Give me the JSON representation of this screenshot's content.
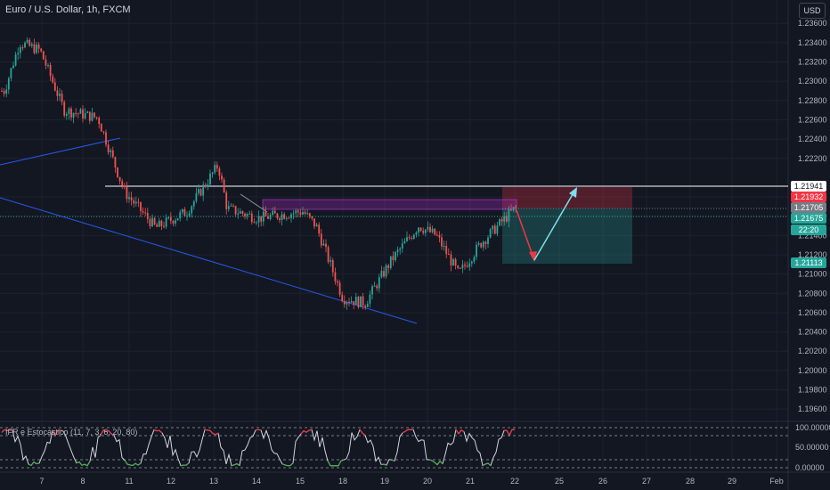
{
  "header": {
    "symbol_title": "Euro / U.S. Dollar, 1h, FXCM",
    "currency_button": "USD",
    "indicator_label": "IFR e Estocástico (11, 7, 3, 6, 20, 80)"
  },
  "price_axis": {
    "ticks": [
      "1.23600",
      "1.23400",
      "1.23200",
      "1.23000",
      "1.22800",
      "1.22600",
      "1.22400",
      "1.22200",
      "1.21800",
      "1.21600",
      "1.21400",
      "1.21200",
      "1.21000",
      "1.20800",
      "1.20600",
      "1.20400",
      "1.20200",
      "1.20000",
      "1.19800",
      "1.19600"
    ],
    "tags": [
      {
        "label": "1.21941",
        "bg": "#ffffff",
        "fg": "#131722"
      },
      {
        "label": "1.21932",
        "bg": "#f23645",
        "fg": "#ffffff"
      },
      {
        "label": "1.21705",
        "bg": "#787b86",
        "fg": "#ffffff"
      },
      {
        "label": "1.21675",
        "bg": "#26a69a",
        "fg": "#ffffff"
      },
      {
        "label": "22:20",
        "bg": "#26a69a",
        "fg": "#ffffff"
      },
      {
        "label": "1.21113",
        "bg": "#26a69a",
        "fg": "#ffffff"
      }
    ]
  },
  "indicator_axis": {
    "ticks": [
      "100.00000",
      "50.00000",
      "0.00000"
    ]
  },
  "time_axis": {
    "labels": [
      "7",
      "8",
      "11",
      "12",
      "13",
      "14",
      "15",
      "18",
      "19",
      "20",
      "21",
      "22",
      "25",
      "26",
      "27",
      "28",
      "29",
      "Feb"
    ]
  },
  "chart_data": {
    "type": "candlestick",
    "instrument": "Euro / U.S. Dollar",
    "interval": "1h",
    "source": "FXCM",
    "ylim": [
      1.195,
      1.2375
    ],
    "levels": {
      "horizontal_line": 1.21941,
      "stop_zone": [
        1.217,
        1.2195
      ],
      "target_zone": [
        1.211,
        1.217
      ],
      "supply_zone": [
        1.2171,
        1.2179
      ]
    },
    "last_price": 1.21675,
    "countdown": "22:20",
    "anchor_path": [
      [
        "7",
        1.229
      ],
      [
        "7",
        1.234
      ],
      [
        "7",
        1.2332
      ],
      [
        "8",
        1.227
      ],
      [
        "8",
        1.2262
      ],
      [
        "11",
        1.2185
      ],
      [
        "11",
        1.2148
      ],
      [
        "12",
        1.2165
      ],
      [
        "13",
        1.2213
      ],
      [
        "13",
        1.2168
      ],
      [
        "14",
        1.2158
      ],
      [
        "15",
        1.2165
      ],
      [
        "15",
        1.215
      ],
      [
        "18",
        1.2075
      ],
      [
        "18",
        1.207
      ],
      [
        "19",
        1.2115
      ],
      [
        "19",
        1.215
      ],
      [
        "20",
        1.214
      ],
      [
        "21",
        1.21
      ],
      [
        "21",
        1.2132
      ],
      [
        "22",
        1.2168
      ]
    ],
    "projection": {
      "down_target": 1.2112,
      "up_target": 1.2193
    },
    "oscillator": {
      "ylim": [
        0,
        100
      ],
      "overbought": 80,
      "oversold": 20
    }
  }
}
